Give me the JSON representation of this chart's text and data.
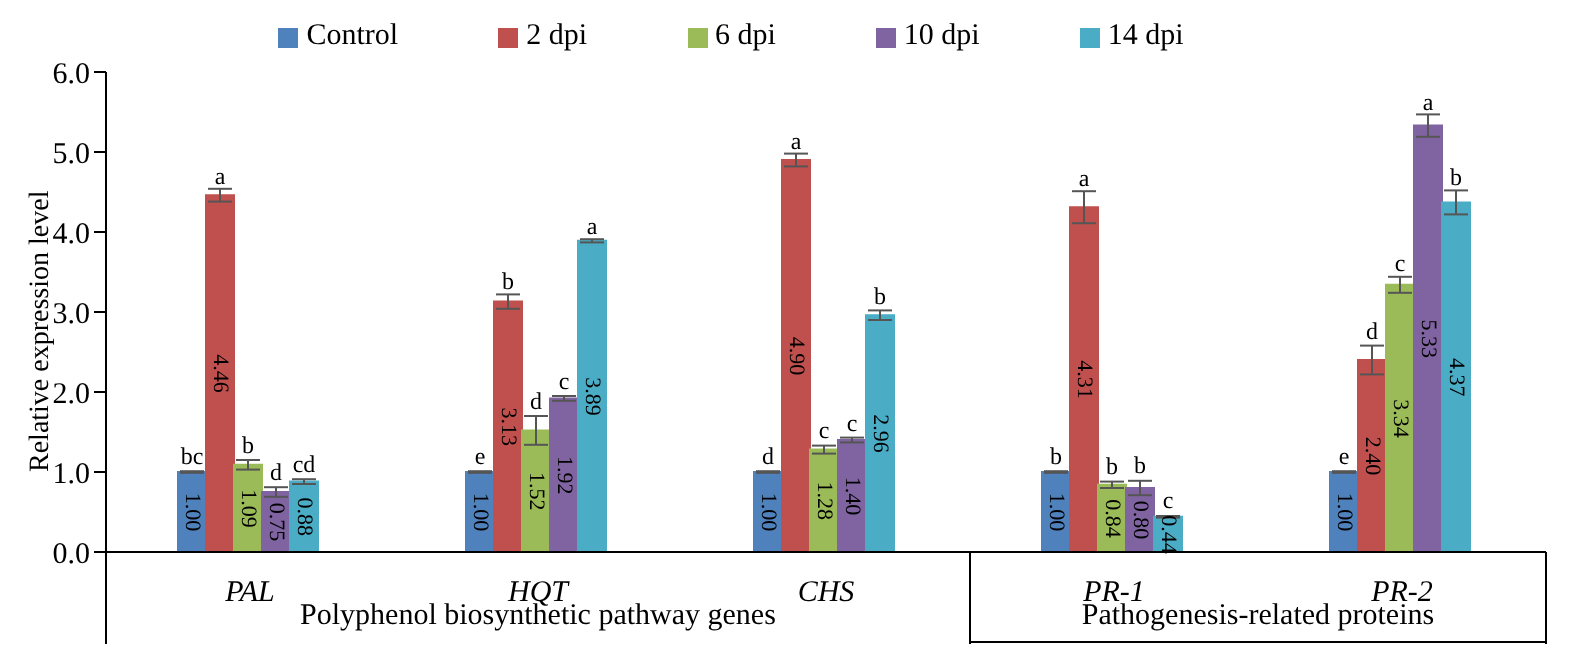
{
  "chart_data": {
    "type": "bar",
    "ylabel": "Relative expression level",
    "categories": [
      "PAL",
      "HQT",
      "CHS",
      "PR-1",
      "PR-2"
    ],
    "series": [
      {
        "name": "Control",
        "color": "#4f81bd",
        "values": [
          1.0,
          1.0,
          1.0,
          1.0,
          1.0
        ],
        "errors": [
          0.01,
          0.01,
          0.01,
          0.01,
          0.01
        ],
        "value_labels": [
          "1.00",
          "1.00",
          "1.00",
          "1.00",
          "1.00"
        ]
      },
      {
        "name": "2 dpi",
        "color": "#c0504d",
        "values": [
          4.46,
          3.13,
          4.9,
          4.31,
          2.4
        ],
        "errors": [
          0.08,
          0.09,
          0.08,
          0.2,
          0.18
        ],
        "value_labels": [
          "4.46",
          "3.13",
          "4.90",
          "4.31",
          "2.40"
        ]
      },
      {
        "name": "6 dpi",
        "color": "#9bbb59",
        "values": [
          1.09,
          1.52,
          1.28,
          0.84,
          3.34
        ],
        "errors": [
          0.06,
          0.18,
          0.05,
          0.04,
          0.1
        ],
        "value_labels": [
          "1.09",
          "1.52",
          "1.28",
          "0.84",
          "3.34"
        ]
      },
      {
        "name": "10 dpi",
        "color": "#8064a2",
        "values": [
          0.75,
          1.92,
          1.4,
          0.8,
          5.33
        ],
        "errors": [
          0.06,
          0.03,
          0.03,
          0.09,
          0.14
        ],
        "value_labels": [
          "0.75",
          "1.92",
          "1.40",
          "0.80",
          "5.33"
        ]
      },
      {
        "name": "14 dpi",
        "color": "#4bacc6",
        "values": [
          0.88,
          3.89,
          2.96,
          0.44,
          4.37
        ],
        "errors": [
          0.03,
          0.02,
          0.06,
          0.01,
          0.15
        ],
        "value_labels": [
          "0.88",
          "3.89",
          "2.96",
          "0.44",
          "4.37"
        ]
      }
    ],
    "ylim": [
      0,
      6
    ],
    "yticks": [
      {
        "value": 0,
        "label": "0.0"
      },
      {
        "value": 1,
        "label": "1.0"
      },
      {
        "value": 2,
        "label": "2.0"
      },
      {
        "value": 3,
        "label": "3.0"
      },
      {
        "value": 4,
        "label": "4.0"
      },
      {
        "value": 5,
        "label": "5.0"
      },
      {
        "value": 6,
        "label": "6.0"
      }
    ],
    "grid": false,
    "legend": "top",
    "annotations": [
      "bc",
      "a",
      "b",
      "d",
      "cd",
      "e",
      "b",
      "d",
      "c",
      "a",
      "d",
      "a",
      "c",
      "c",
      "b",
      "b",
      "a",
      "b",
      "b",
      "c",
      "e",
      "d",
      "c",
      "a",
      "b",
      "Polyphenol biosynthetic pathway genes",
      "Pathogenesis-related proteins"
    ]
  }
}
